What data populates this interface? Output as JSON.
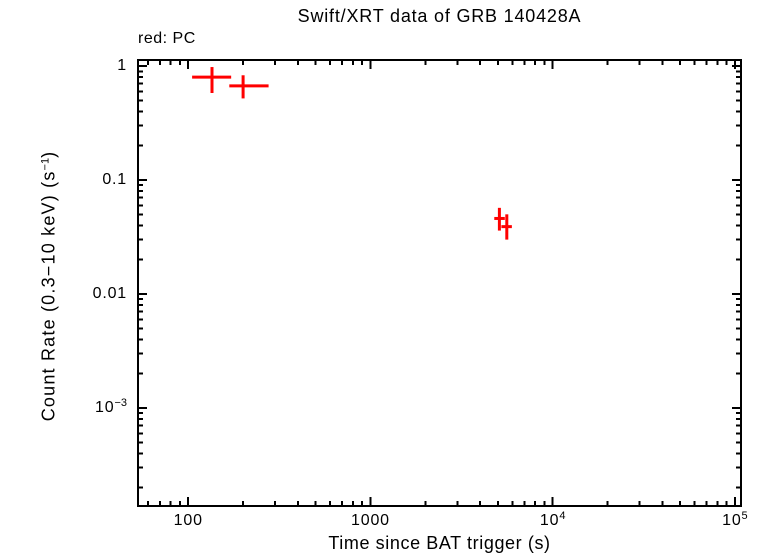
{
  "page": {
    "background": "#ffffff"
  },
  "header": {
    "title": "Swift/XRT data of GRB 140428A",
    "legend": "red: PC"
  },
  "colors": {
    "pc_red": "#ff0000",
    "axis_black": "#000000"
  },
  "chart_data": {
    "type": "scatter",
    "title": "Swift/XRT data of GRB 140428A",
    "xlabel": "Time since BAT trigger (s)",
    "ylabel": "Count Rate (0.3−10 keV) (s−1)",
    "ylabel_segments": [
      {
        "text": "Count Rate (0.3−10 keV) (s"
      },
      {
        "text": "−1",
        "sup": true
      },
      {
        "text": ")"
      }
    ],
    "xscale": "log",
    "yscale": "log",
    "xlim": [
      53,
      108000
    ],
    "ylim": [
      0.000138,
      1.13
    ],
    "grid": false,
    "legend_text": "red: PC",
    "legend_position": "top-left",
    "xticks": [
      {
        "value": 100,
        "base": "100",
        "exp": ""
      },
      {
        "value": 1000,
        "base": "1000",
        "exp": ""
      },
      {
        "value": 10000,
        "base": "10",
        "exp": "4"
      },
      {
        "value": 100000,
        "base": "10",
        "exp": "5"
      }
    ],
    "yticks": [
      {
        "value": 1,
        "base": "1",
        "exp": ""
      },
      {
        "value": 0.1,
        "base": "0.1",
        "exp": ""
      },
      {
        "value": 0.01,
        "base": "0.01",
        "exp": ""
      },
      {
        "value": 0.001,
        "base": "10",
        "exp": "−3"
      }
    ],
    "series": [
      {
        "name": "PC",
        "color": "#ff0000",
        "marker": "cross-with-error-bars",
        "points": [
          {
            "t": 135,
            "t_lo": 105,
            "t_hi": 172,
            "rate": 0.8,
            "rate_lo": 0.58,
            "rate_hi": 0.98
          },
          {
            "t": 200,
            "t_lo": 168,
            "t_hi": 276,
            "rate": 0.67,
            "rate_lo": 0.52,
            "rate_hi": 0.83
          },
          {
            "t": 5100,
            "t_lo": 4780,
            "t_hi": 5460,
            "rate": 0.046,
            "rate_lo": 0.036,
            "rate_hi": 0.057
          },
          {
            "t": 5600,
            "t_lo": 5230,
            "t_hi": 5970,
            "rate": 0.039,
            "rate_lo": 0.03,
            "rate_hi": 0.05
          }
        ]
      }
    ]
  }
}
